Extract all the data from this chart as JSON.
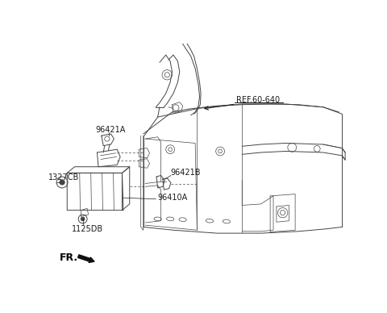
{
  "bg_color": "#ffffff",
  "lc": "#444444",
  "lc_dark": "#222222",
  "fig_width": 4.8,
  "fig_height": 3.88,
  "dpi": 100,
  "labels": {
    "REF60640": "REF.60-640",
    "96421A": "96421A",
    "1327CB": "1327CB",
    "96421B": "96421B",
    "96410A": "96410A",
    "1125DB": "1125DB",
    "FR": "FR."
  }
}
